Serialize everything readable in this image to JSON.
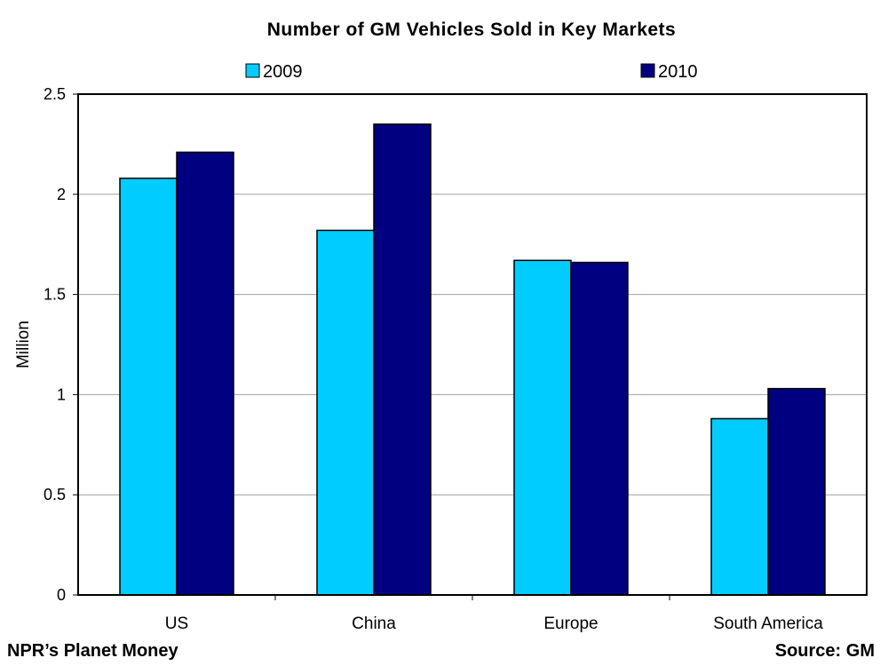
{
  "colors": {
    "series_2009": "#00CCFF",
    "series_2010": "#000080",
    "gridline": "#A0A0A0",
    "plot_border": "#000000"
  },
  "chart_data": {
    "type": "bar",
    "title": "Number of GM Vehicles Sold in Key Markets",
    "xlabel": "",
    "ylabel": "Million",
    "categories": [
      "US",
      "China",
      "Europe",
      "South America"
    ],
    "series": [
      {
        "name": "2009",
        "values": [
          2.08,
          1.82,
          1.67,
          0.88
        ]
      },
      {
        "name": "2010",
        "values": [
          2.21,
          2.35,
          1.66,
          1.03
        ]
      }
    ],
    "ylim": [
      0,
      2.5
    ],
    "yticks": [
      "0",
      "0.5",
      "1",
      "1.5",
      "2",
      "2.5"
    ],
    "grid": true,
    "legend_position": "top"
  },
  "footer": {
    "left": "NPR’s Planet Money",
    "right": "Source: GM"
  }
}
